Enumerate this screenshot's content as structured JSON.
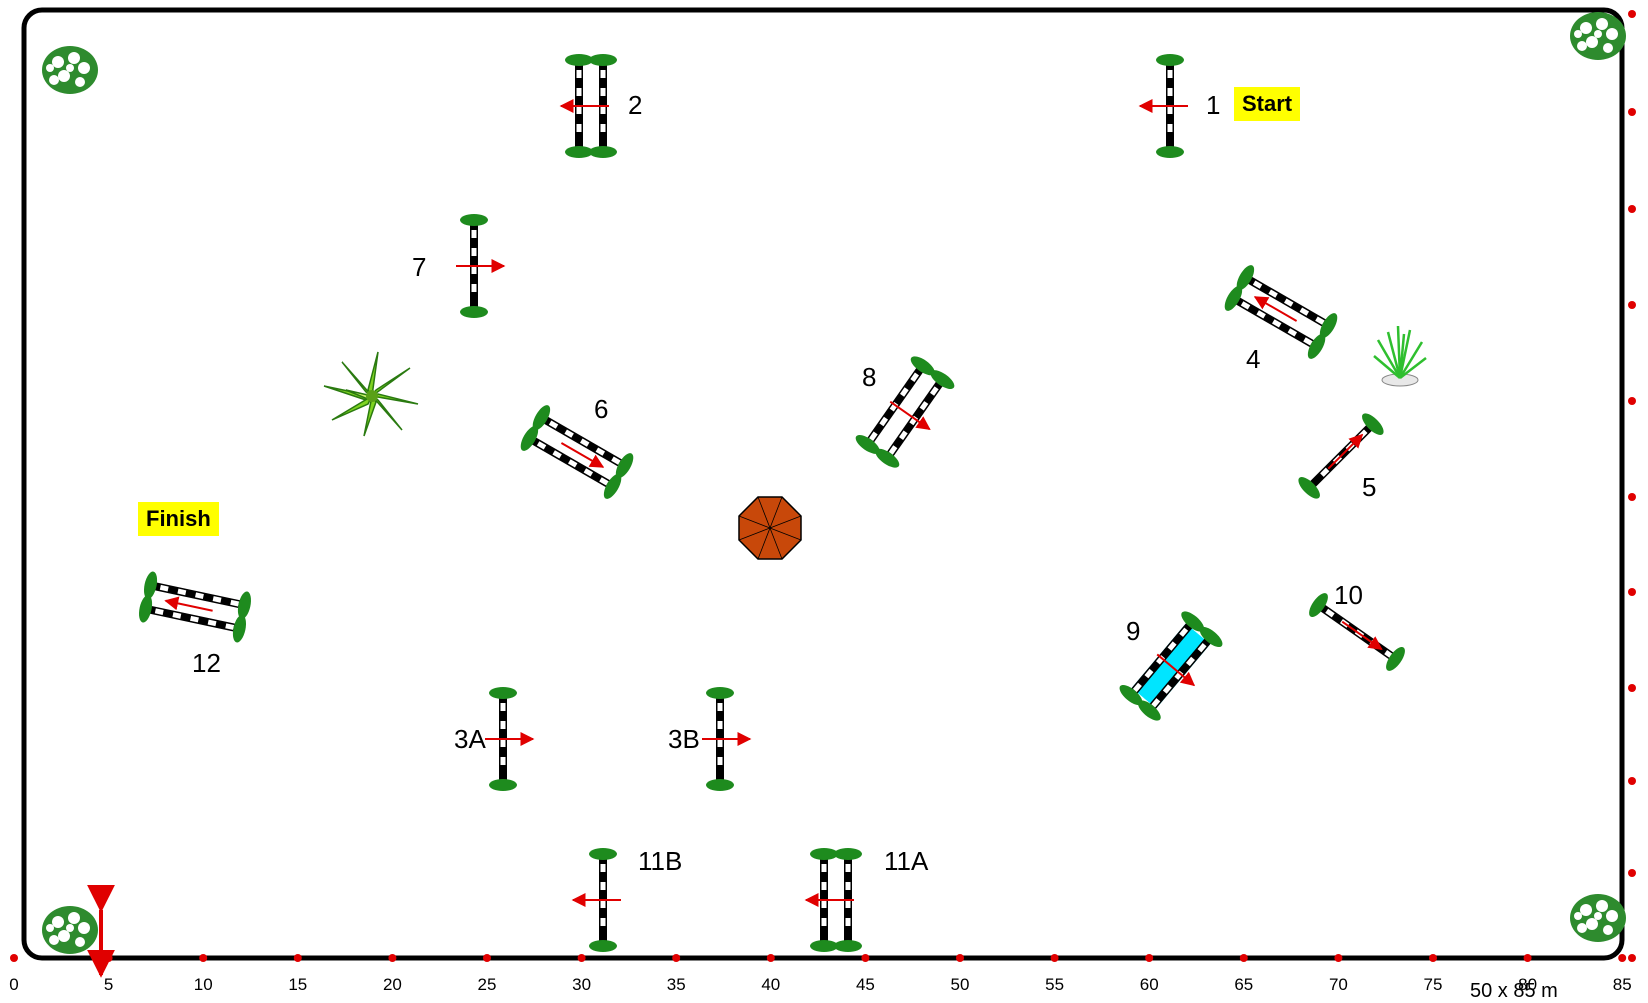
{
  "course": {
    "dimensions_label": "50 x 85 m",
    "start_label": "Start",
    "finish_label": "Finish"
  },
  "axis_x": {
    "ticks": [
      "0",
      "5",
      "10",
      "15",
      "20",
      "25",
      "30",
      "35",
      "40",
      "45",
      "50",
      "55",
      "60",
      "65",
      "70",
      "75",
      "80",
      "85"
    ]
  },
  "axis_y": {
    "ticks": [
      "0",
      "5",
      "10",
      "15",
      "20",
      "25",
      "30",
      "35",
      "40",
      "45",
      "50"
    ],
    "visible_text": "5"
  },
  "colors": {
    "pole_black": "#000000",
    "pole_white": "#ffffff",
    "stand_green": "#1e8b1e",
    "arrow_red": "#e00000",
    "water_cyan": "#00e5ff",
    "tick_red": "#e00000",
    "umbrella": "#c8480a",
    "label_yellow": "#ffff00"
  },
  "obstacles": [
    {
      "number": "1",
      "type": "vertical"
    },
    {
      "number": "2",
      "type": "oxer"
    },
    {
      "number": "3A",
      "type": "vertical"
    },
    {
      "number": "3B",
      "type": "vertical"
    },
    {
      "number": "4",
      "type": "oxer"
    },
    {
      "number": "5",
      "type": "vertical"
    },
    {
      "number": "6",
      "type": "oxer"
    },
    {
      "number": "7",
      "type": "vertical"
    },
    {
      "number": "8",
      "type": "oxer"
    },
    {
      "number": "9",
      "type": "water-oxer"
    },
    {
      "number": "10",
      "type": "vertical"
    },
    {
      "number": "11A",
      "type": "oxer"
    },
    {
      "number": "11B",
      "type": "vertical"
    },
    {
      "number": "12",
      "type": "oxer"
    }
  ],
  "decorations": [
    "flower-bush-icon",
    "flower-bush-icon",
    "flower-bush-icon",
    "flower-bush-icon",
    "palm-plant-icon",
    "grass-pot-icon",
    "umbrella-icon"
  ]
}
